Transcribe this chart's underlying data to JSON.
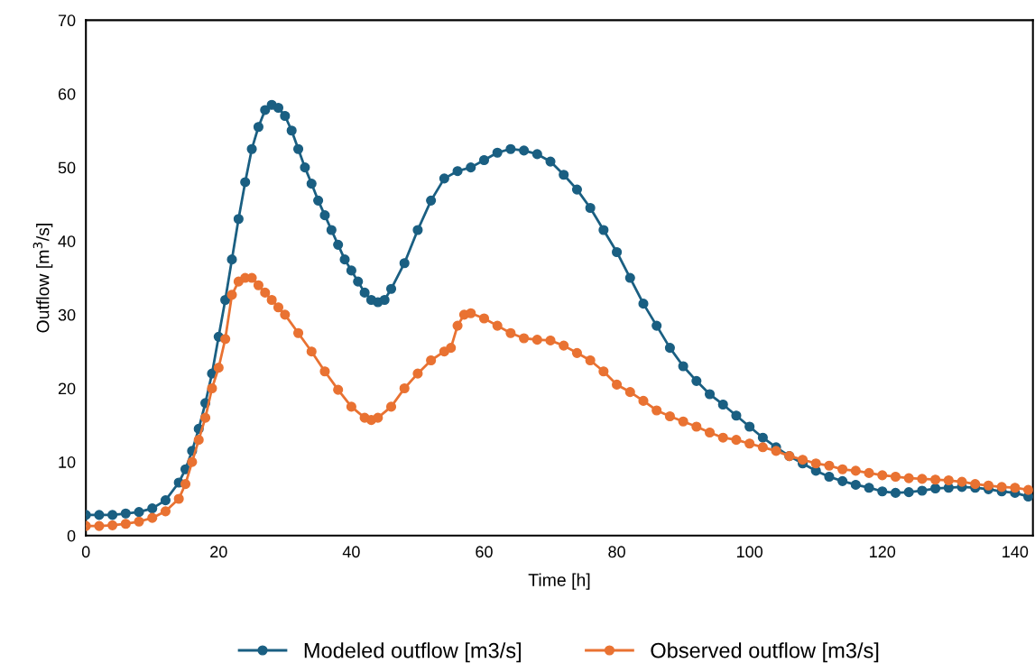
{
  "chart_data": {
    "type": "line",
    "xlabel": "Time [h]",
    "ylabel": "Outflow [m$^{3}$/s]",
    "xlim": [
      0,
      142.7
    ],
    "xticks": [
      0,
      20,
      40,
      60,
      80,
      100,
      120,
      140
    ],
    "ylim": [
      0,
      70
    ],
    "yticks": [
      0,
      10,
      20,
      30,
      40,
      50,
      60,
      70
    ],
    "grid": false,
    "legend": "bottom",
    "marker": "circle",
    "line_style": "solid",
    "series": [
      {
        "name": "Modeled outflow [m3/s]",
        "color": "#1a5f82",
        "x": [
          0,
          2,
          4,
          6,
          8,
          10,
          12,
          14,
          15,
          16,
          17,
          18,
          19,
          20,
          21,
          22,
          23,
          24,
          25,
          26,
          27,
          28,
          29,
          30,
          31,
          32,
          33,
          34,
          35,
          36,
          37,
          38,
          39,
          40,
          41,
          42,
          43,
          44,
          45,
          46,
          48,
          50,
          52,
          54,
          56,
          58,
          60,
          62,
          64,
          66,
          68,
          70,
          72,
          74,
          76,
          78,
          80,
          82,
          84,
          86,
          88,
          90,
          92,
          94,
          96,
          98,
          100,
          102,
          104,
          106,
          108,
          110,
          112,
          114,
          116,
          118,
          120,
          122,
          124,
          126,
          128,
          130,
          132,
          134,
          136,
          138,
          140,
          142
        ],
        "values": [
          2.8,
          2.8,
          2.8,
          3.0,
          3.2,
          3.7,
          4.8,
          7.2,
          9,
          11.5,
          14.5,
          18,
          22,
          27,
          32,
          37.5,
          43,
          48,
          52.5,
          55.5,
          57.8,
          58.5,
          58.1,
          57,
          55,
          52.5,
          50,
          47.8,
          45.5,
          43.5,
          41.5,
          39.5,
          37.5,
          36,
          34.5,
          33,
          32,
          31.7,
          32,
          33.5,
          37,
          41.5,
          45.5,
          48.5,
          49.5,
          50,
          51,
          52,
          52.5,
          52.3,
          51.8,
          50.8,
          49,
          47,
          44.5,
          41.5,
          38.5,
          35,
          31.5,
          28.5,
          25.5,
          23,
          21,
          19.2,
          17.8,
          16.3,
          14.8,
          13.3,
          12,
          10.8,
          9.8,
          8.8,
          8.0,
          7.4,
          6.9,
          6.5,
          6.0,
          5.8,
          5.9,
          6.1,
          6.4,
          6.5,
          6.6,
          6.5,
          6.3,
          6.0,
          5.8,
          5.3
        ]
      },
      {
        "name": "Observed outflow [m3/s]",
        "color": "#e97232",
        "x": [
          0,
          2,
          4,
          6,
          8,
          10,
          12,
          14,
          15,
          16,
          17,
          18,
          19,
          20,
          21,
          22,
          23,
          24,
          25,
          26,
          27,
          28,
          29,
          30,
          32,
          34,
          36,
          38,
          40,
          42,
          43,
          44,
          46,
          48,
          50,
          52,
          54,
          55,
          56,
          57,
          58,
          60,
          62,
          64,
          66,
          68,
          70,
          72,
          74,
          76,
          78,
          80,
          82,
          84,
          86,
          88,
          90,
          92,
          94,
          96,
          98,
          100,
          102,
          104,
          106,
          108,
          110,
          112,
          114,
          116,
          118,
          120,
          122,
          124,
          126,
          128,
          130,
          132,
          134,
          136,
          138,
          140,
          142
        ],
        "values": [
          1.3,
          1.3,
          1.4,
          1.6,
          1.9,
          2.4,
          3.3,
          5,
          7,
          10,
          13,
          16,
          20,
          22.8,
          26.7,
          32.7,
          34.5,
          35,
          35,
          34,
          33,
          32,
          31,
          30,
          27.5,
          25,
          22.3,
          19.8,
          17.5,
          16,
          15.7,
          16,
          17.5,
          20,
          22,
          23.8,
          25,
          25.5,
          28.5,
          30,
          30.2,
          29.5,
          28.5,
          27.5,
          26.8,
          26.6,
          26.5,
          25.8,
          24.8,
          23.8,
          22.3,
          20.5,
          19.5,
          18.3,
          17,
          16.2,
          15.5,
          14.8,
          14,
          13.3,
          13,
          12.5,
          12,
          11.5,
          10.8,
          10.3,
          9.8,
          9.5,
          9.0,
          8.8,
          8.5,
          8.2,
          8.0,
          7.8,
          7.7,
          7.6,
          7.5,
          7.3,
          7.0,
          6.8,
          6.6,
          6.5,
          6.2
        ]
      }
    ]
  }
}
